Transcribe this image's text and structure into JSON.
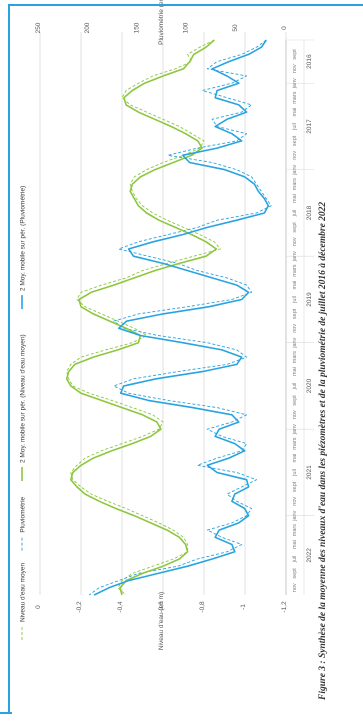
{
  "caption": "Figure 3 : Synthèse de la moyenne des niveaux d'eau dans les piézomètres et de la pluviométrie de juillet 2016 à décembre 2022",
  "chart_data": {
    "type": "line",
    "title": "",
    "ylabel": "Niveau d'eau (en m)",
    "y2label": "Pluviométrie (en mm)",
    "ylim": [
      -1.2,
      0
    ],
    "y2lim": [
      0,
      250
    ],
    "yticks": [
      "0",
      "-0,2",
      "-0,4",
      "-0,6",
      "-0,8",
      "-1",
      "-1,2"
    ],
    "y2ticks": [
      "0",
      "50",
      "100",
      "150",
      "200",
      "250"
    ],
    "years": [
      "2016",
      "2017",
      "2018",
      "2019",
      "2020",
      "2021",
      "2022"
    ],
    "month_labels": [
      "sept",
      "nov",
      "janv",
      "mars",
      "mai",
      "juil",
      "sept",
      "nov"
    ],
    "x_start": "2016-07",
    "x_end": "2022-12",
    "legend_position": "top",
    "series": [
      {
        "name": "Niveau d'eau moyen",
        "style": "dashed",
        "color": "#8dc63f",
        "axis": "left",
        "values": [
          -0.85,
          -0.78,
          -0.72,
          -0.74,
          -0.66,
          -0.55,
          -0.48,
          -0.42,
          -0.4,
          -0.44,
          -0.52,
          -0.6,
          -0.68,
          -0.74,
          -0.8,
          -0.78,
          -0.7,
          -0.6,
          -0.52,
          -0.46,
          -0.44,
          -0.45,
          -0.47,
          -0.5,
          -0.55,
          -0.62,
          -0.7,
          -0.78,
          -0.85,
          -0.88,
          -0.75,
          -0.62,
          -0.5,
          -0.42,
          -0.3,
          -0.2,
          -0.18,
          -0.22,
          -0.3,
          -0.38,
          -0.46,
          -0.52,
          -0.45,
          -0.32,
          -0.2,
          -0.15,
          -0.13,
          -0.14,
          -0.16,
          -0.24,
          -0.35,
          -0.45,
          -0.55,
          -0.6,
          -0.58,
          -0.5,
          -0.4,
          -0.3,
          -0.22,
          -0.18,
          -0.15,
          -0.16,
          -0.2,
          -0.25,
          -0.33,
          -0.42,
          -0.5,
          -0.58,
          -0.65,
          -0.7,
          -0.72,
          -0.72,
          -0.65,
          -0.55,
          -0.45,
          -0.4,
          -0.38,
          -0.42
        ]
      },
      {
        "name": "Pluviométrie",
        "style": "dashed",
        "color": "#29a3e0",
        "axis": "right",
        "values": [
          20,
          30,
          45,
          70,
          80,
          40,
          55,
          85,
          60,
          35,
          45,
          75,
          70,
          40,
          50,
          90,
          120,
          75,
          50,
          35,
          30,
          25,
          20,
          15,
          30,
          70,
          90,
          120,
          150,
          170,
          140,
          110,
          90,
          60,
          40,
          35,
          55,
          100,
          150,
          175,
          165,
          130,
          80,
          50,
          40,
          60,
          110,
          155,
          175,
          160,
          120,
          70,
          40,
          55,
          80,
          65,
          40,
          45,
          70,
          90,
          50,
          30,
          45,
          60,
          50,
          35,
          40,
          55,
          80,
          65,
          45,
          60,
          90,
          110,
          150,
          170,
          190,
          200
        ]
      },
      {
        "name": "2 Moy. mobile sur pér. (Niveau d'eau moyen)",
        "style": "solid",
        "color": "#8dc63f",
        "axis": "left",
        "values": [
          -0.85,
          -0.81,
          -0.75,
          -0.73,
          -0.7,
          -0.6,
          -0.51,
          -0.45,
          -0.41,
          -0.42,
          -0.48,
          -0.56,
          -0.64,
          -0.71,
          -0.77,
          -0.79,
          -0.74,
          -0.65,
          -0.56,
          -0.49,
          -0.45,
          -0.44,
          -0.46,
          -0.48,
          -0.52,
          -0.58,
          -0.66,
          -0.74,
          -0.81,
          -0.86,
          -0.81,
          -0.68,
          -0.56,
          -0.46,
          -0.36,
          -0.25,
          -0.19,
          -0.2,
          -0.26,
          -0.34,
          -0.42,
          -0.49,
          -0.48,
          -0.38,
          -0.26,
          -0.17,
          -0.14,
          -0.13,
          -0.15,
          -0.2,
          -0.3,
          -0.4,
          -0.5,
          -0.57,
          -0.59,
          -0.54,
          -0.45,
          -0.35,
          -0.26,
          -0.2,
          -0.16,
          -0.15,
          -0.18,
          -0.22,
          -0.29,
          -0.37,
          -0.46,
          -0.54,
          -0.62,
          -0.68,
          -0.71,
          -0.72,
          -0.68,
          -0.6,
          -0.5,
          -0.42,
          -0.39,
          -0.4
        ]
      },
      {
        "name": "2 Moy. mobile sur pér. (Pluviométrie)",
        "style": "solid",
        "color": "#29a3e0",
        "axis": "right",
        "values": [
          20,
          25,
          38,
          58,
          75,
          60,
          48,
          70,
          72,
          48,
          40,
          60,
          72,
          55,
          45,
          70,
          105,
          98,
          62,
          42,
          32,
          28,
          22,
          18,
          22,
          50,
          80,
          105,
          135,
          160,
          155,
          125,
          100,
          75,
          50,
          38,
          45,
          78,
          125,
          162,
          170,
          148,
          105,
          65,
          45,
          50,
          85,
          132,
          165,
          168,
          140,
          95,
          55,
          48,
          68,
          72,
          52,
          42,
          58,
          80,
          70,
          40,
          38,
          52,
          55,
          42,
          38,
          48,
          68,
          72,
          55,
          52,
          75,
          100,
          130,
          160,
          180,
          195
        ]
      }
    ]
  }
}
